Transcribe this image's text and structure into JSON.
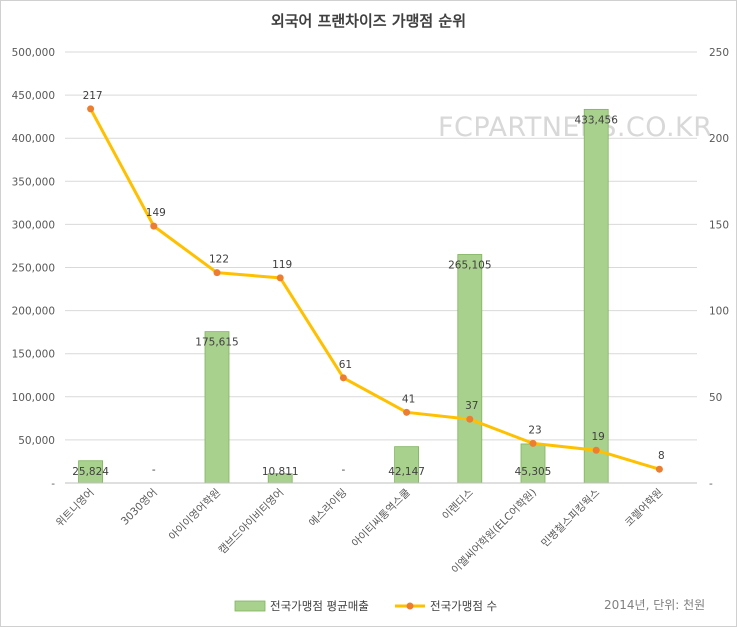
{
  "chart_data": {
    "type": "bar+line",
    "title": "외국어 프랜차이즈 가맹점 순위",
    "watermark": "FCPARTNERS.CO.KR",
    "note": "2014년, 단위: 천원",
    "categories": [
      "위트니영어",
      "3030영어",
      "아이이영어학원",
      "캠브드아이비티영어",
      "에스라이팅",
      "아이티씨통역스쿨",
      "이렌디스",
      "이엘씨어학원(ELC어학원)",
      "민병철스피킹웍스",
      "코렐어학원"
    ],
    "y_left": {
      "min": 0,
      "max": 500000,
      "step": 50000,
      "ticks": [
        "-",
        "50,000",
        "100,000",
        "150,000",
        "200,000",
        "250,000",
        "300,000",
        "350,000",
        "400,000",
        "450,000",
        "500,000"
      ]
    },
    "y_right": {
      "min": 0,
      "max": 250,
      "step": 50,
      "ticks": [
        "-",
        "50",
        "100",
        "150",
        "200",
        "250"
      ]
    },
    "series": [
      {
        "name": "전국가맹점 평균매출",
        "kind": "bar",
        "axis": "left",
        "color": "#a9d18e",
        "values": [
          25824,
          null,
          175615,
          10811,
          null,
          42147,
          265105,
          45305,
          433456,
          null
        ],
        "labels": [
          "25,824",
          "-",
          "175,615",
          "10,811",
          "-",
          "42,147",
          "265,105",
          "45,305",
          "433,456",
          ""
        ]
      },
      {
        "name": "전국가맹점 수",
        "kind": "line",
        "axis": "right",
        "color": "#ffc000",
        "marker_color": "#ed7d31",
        "values": [
          217,
          149,
          122,
          119,
          61,
          41,
          37,
          23,
          19,
          8
        ],
        "labels": [
          "217",
          "149",
          "122",
          "119",
          "61",
          "41",
          "37",
          "23",
          "19",
          "8"
        ]
      }
    ],
    "legend": "bottom",
    "grid": true
  }
}
